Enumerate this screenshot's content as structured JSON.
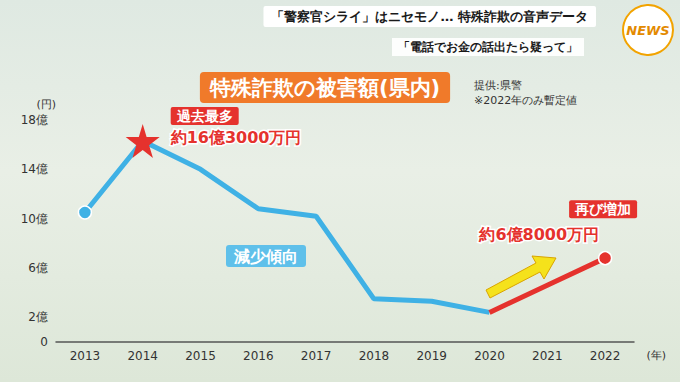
{
  "chart_data": {
    "type": "line",
    "header": [
      "「警察官シライ」はニセモノ… 特殊詐欺の音声データ",
      "「電話でお金の話出たら疑って」"
    ],
    "logo": "NEWS",
    "title": "特殊詐欺の被害額(県内)",
    "source": "提供:県警",
    "note": "※2022年のみ暫定値",
    "y_label": "(円)",
    "x_label": "(年)",
    "categories": [
      "2013",
      "2014",
      "2015",
      "2016",
      "2017",
      "2018",
      "2019",
      "2020",
      "2021",
      "2022"
    ],
    "series": [
      {
        "color": "#3fb1e5",
        "marker": "circle",
        "values": [
          10.5,
          16.3,
          14.0,
          10.8,
          10.2,
          3.5,
          3.3,
          2.4,
          null,
          null
        ]
      },
      {
        "color": "#e5322d",
        "marker": "circle",
        "values": [
          null,
          null,
          null,
          null,
          null,
          null,
          null,
          2.4,
          4.6,
          6.8
        ]
      }
    ],
    "ylim": [
      0,
      18
    ],
    "yticks": [
      0,
      {
        "value": 2,
        "label": "2億"
      },
      {
        "value": 6,
        "label": "6億"
      },
      {
        "value": 10,
        "label": "10億"
      },
      {
        "value": 14,
        "label": "14億"
      },
      {
        "value": 18,
        "label": "18億"
      }
    ],
    "grid": false,
    "annotations": [
      "過去最多",
      "約16億3000万円",
      "減少傾向",
      "約6億8000万円",
      "再び増加"
    ]
  }
}
